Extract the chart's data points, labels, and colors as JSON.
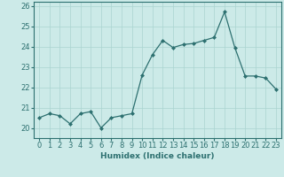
{
  "x": [
    0,
    1,
    2,
    3,
    4,
    5,
    6,
    7,
    8,
    9,
    10,
    11,
    12,
    13,
    14,
    15,
    16,
    17,
    18,
    19,
    20,
    21,
    22,
    23
  ],
  "y": [
    20.5,
    20.7,
    20.6,
    20.2,
    20.7,
    20.8,
    20.0,
    20.5,
    20.6,
    20.7,
    22.6,
    23.6,
    24.3,
    23.95,
    24.1,
    24.15,
    24.3,
    24.45,
    25.7,
    23.95,
    22.55,
    22.55,
    22.45,
    21.9
  ],
  "line_color": "#2d7070",
  "marker": "D",
  "marker_size": 2,
  "bg_color": "#cceae8",
  "grid_color": "#aad4d0",
  "xlabel": "Humidex (Indice chaleur)",
  "ylim": [
    19.5,
    26.2
  ],
  "xlim": [
    -0.5,
    23.5
  ],
  "yticks": [
    20,
    21,
    22,
    23,
    24,
    25,
    26
  ],
  "xticks": [
    0,
    1,
    2,
    3,
    4,
    5,
    6,
    7,
    8,
    9,
    10,
    11,
    12,
    13,
    14,
    15,
    16,
    17,
    18,
    19,
    20,
    21,
    22,
    23
  ],
  "xlabel_fontsize": 6.5,
  "tick_fontsize": 6
}
